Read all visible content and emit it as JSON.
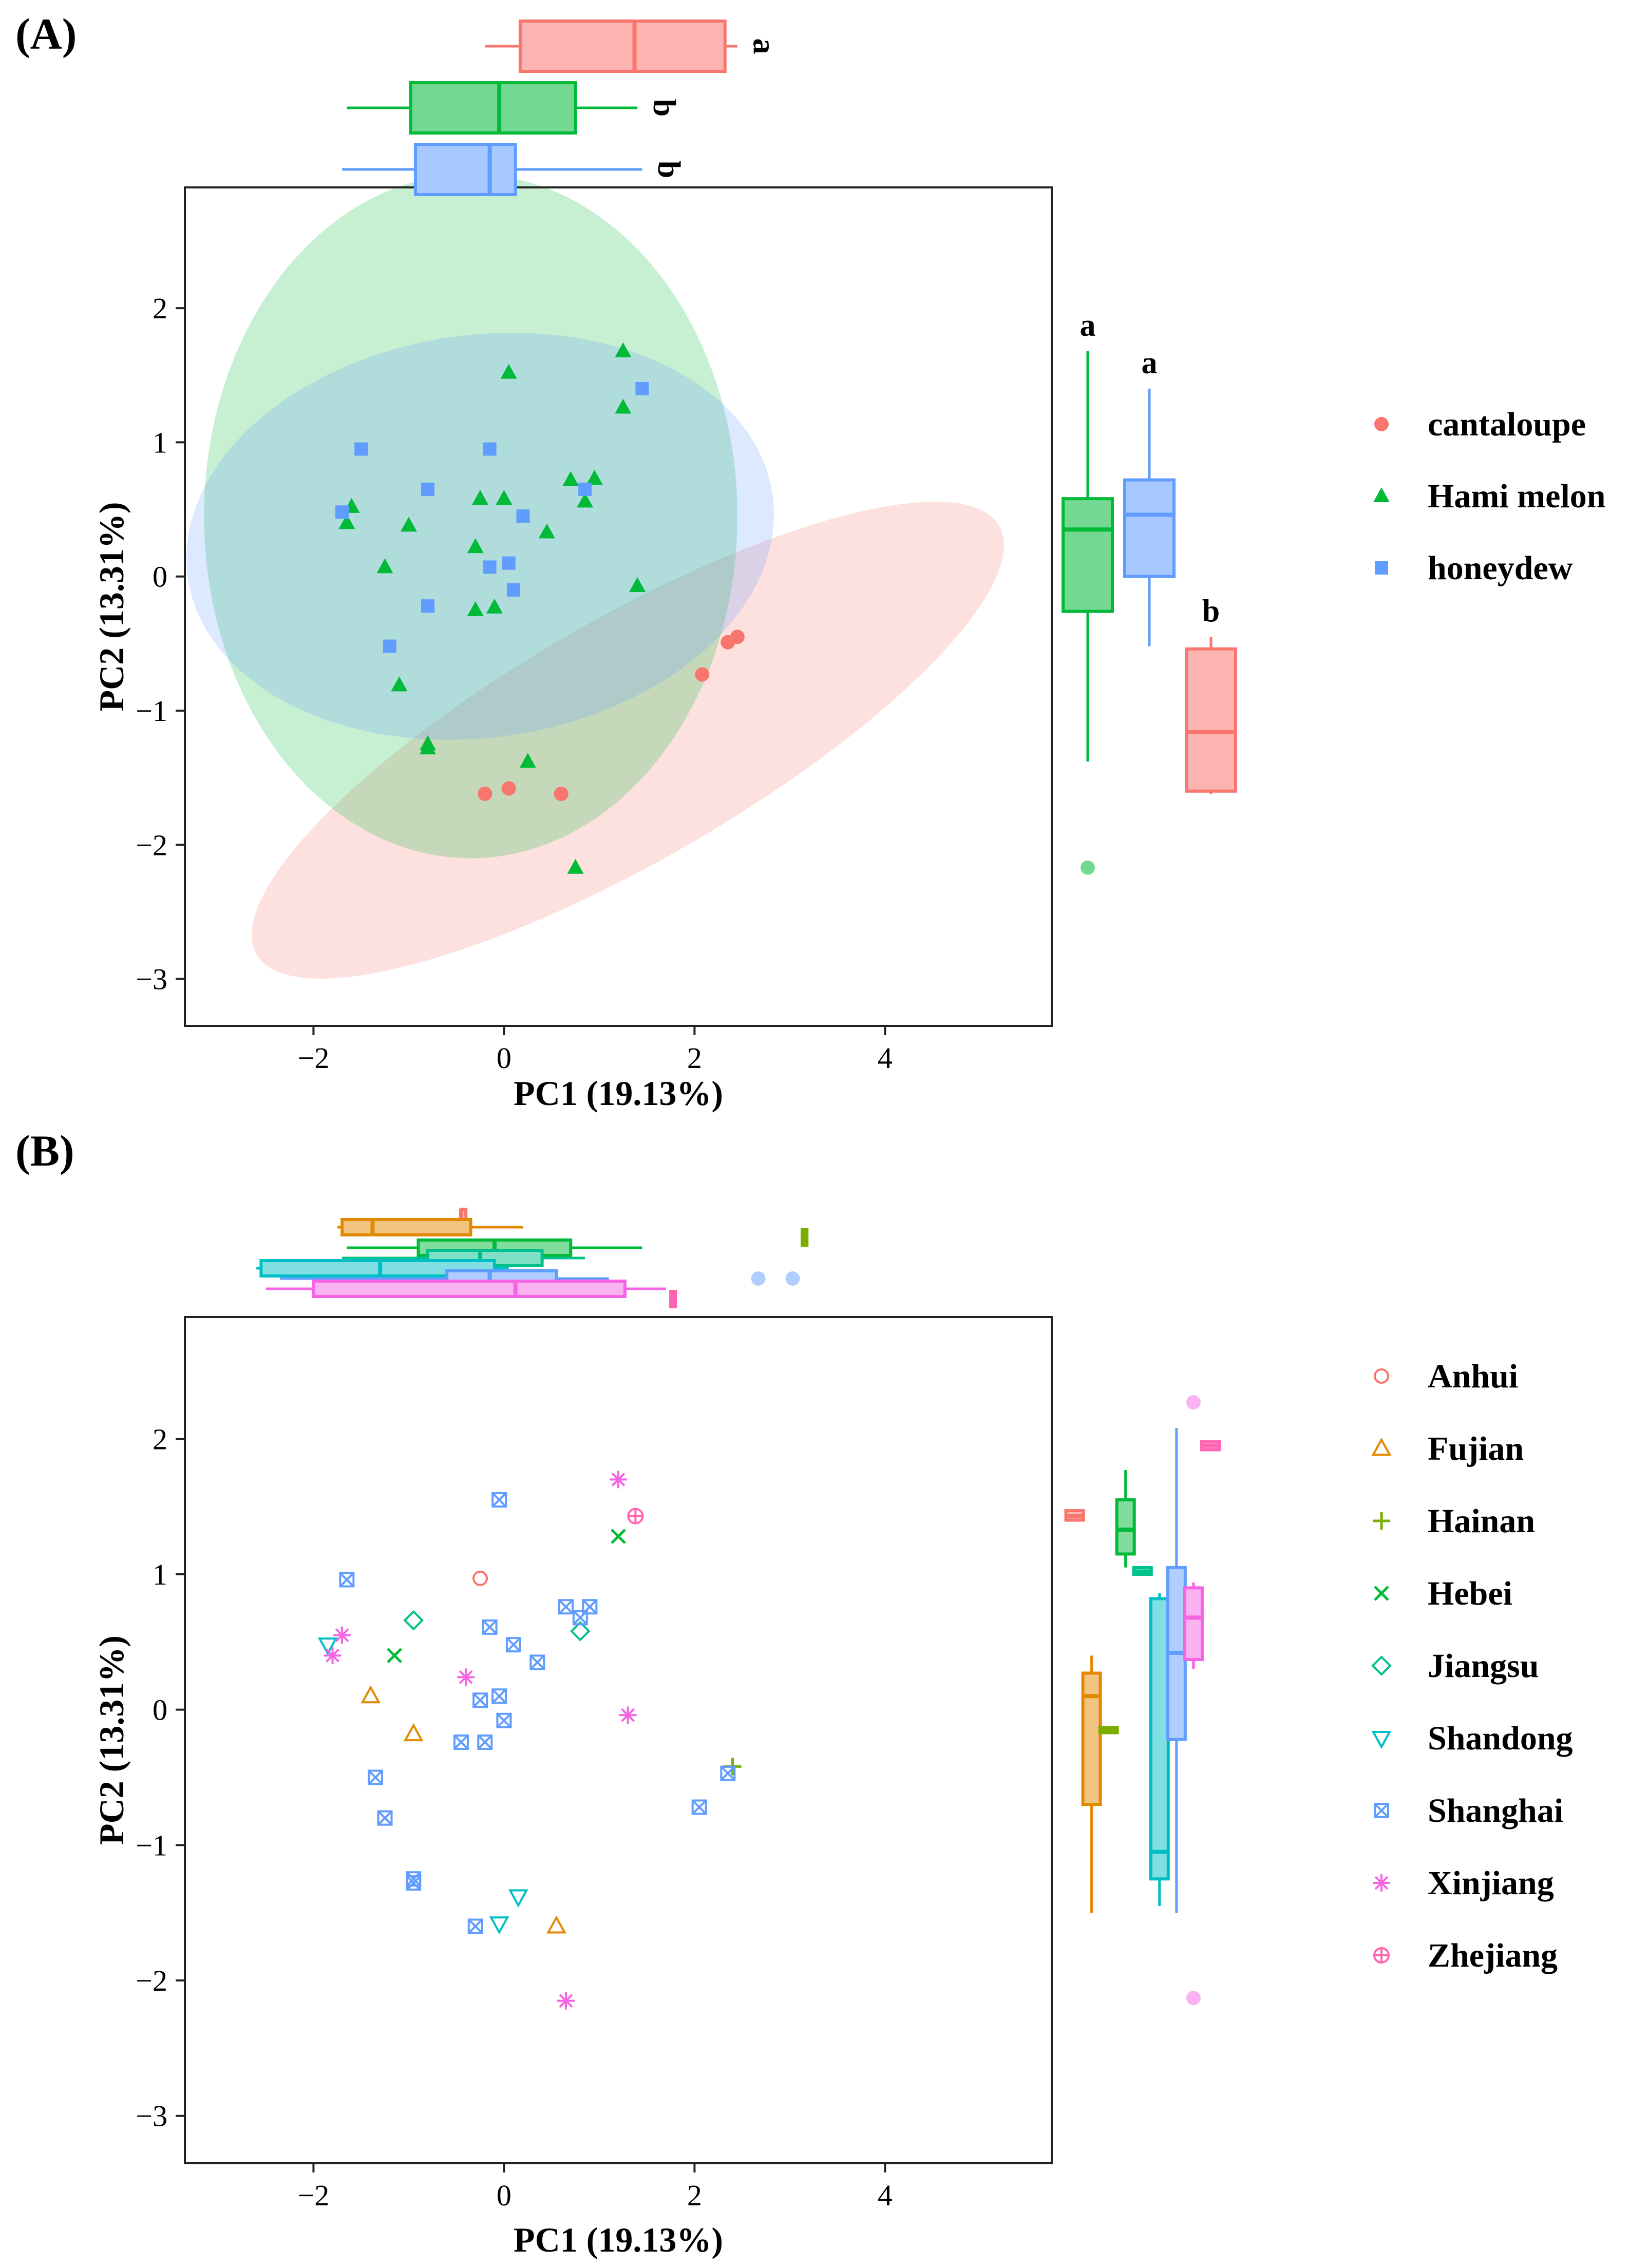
{
  "chart_data": [
    {
      "panel_label": "(A)",
      "type": "scatter",
      "xlabel": "PC1 (19.13%)",
      "ylabel": "PC2 (13.31%)",
      "xlim": [
        -3.35,
        5.75
      ],
      "ylim": [
        -3.35,
        2.9
      ],
      "x_ticks": [
        -2,
        0,
        2,
        4
      ],
      "y_ticks": [
        -3,
        -2,
        -1,
        0,
        1,
        2
      ],
      "x_tick_labels": [
        "−2",
        "0",
        "2",
        "4"
      ],
      "y_tick_labels": [
        "−3",
        "−2",
        "−1",
        "0",
        "1",
        "2"
      ],
      "grid": false,
      "legend_position": "right",
      "series": [
        {
          "name": "cantaloupe",
          "color": "#F8766D",
          "shape": "circle",
          "points": [
            [
              2.08,
              -0.73
            ],
            [
              2.35,
              -0.49
            ],
            [
              2.45,
              -0.45
            ],
            [
              0.05,
              -1.58
            ],
            [
              -0.2,
              -1.62
            ],
            [
              0.6,
              -1.62
            ]
          ],
          "ellipse": {
            "center": [
              1.3,
              -1.22
            ],
            "rx": 4.5,
            "ry": 0.9,
            "angle_deg": 30,
            "fill": "#F8766D"
          },
          "box_x": {
            "min": -0.2,
            "q1": 0.17,
            "median": 1.37,
            "q3": 2.32,
            "max": 2.45,
            "letter": "a"
          },
          "box_y": {
            "min": -1.62,
            "q1": -1.6,
            "median": -1.16,
            "q3": -0.54,
            "max": -0.45,
            "letter": "b"
          }
        },
        {
          "name": "Hami melon",
          "color": "#00BA38",
          "shape": "triangle",
          "points": [
            [
              1.25,
              1.68
            ],
            [
              0.05,
              1.52
            ],
            [
              1.25,
              1.26
            ],
            [
              -1.6,
              0.52
            ],
            [
              -1.65,
              0.4
            ],
            [
              -1.0,
              0.38
            ],
            [
              -0.3,
              0.22
            ],
            [
              0.45,
              0.33
            ],
            [
              0.7,
              0.72
            ],
            [
              0.95,
              0.73
            ],
            [
              0.85,
              0.56
            ],
            [
              0.0,
              0.58
            ],
            [
              -0.25,
              0.58
            ],
            [
              -1.25,
              0.07
            ],
            [
              1.4,
              -0.07
            ],
            [
              -0.3,
              -0.25
            ],
            [
              -0.1,
              -0.23
            ],
            [
              -1.1,
              -0.81
            ],
            [
              -0.8,
              -1.25
            ],
            [
              -0.8,
              -1.28
            ],
            [
              0.25,
              -1.38
            ],
            [
              0.75,
              -2.17
            ]
          ],
          "ellipse": {
            "center": [
              -0.35,
              0.45
            ],
            "rx": 2.8,
            "ry": 2.55,
            "angle_deg": 0,
            "fill": "#00BA38"
          },
          "box_x": {
            "min": -1.65,
            "q1": -0.98,
            "median": -0.05,
            "q3": 0.75,
            "max": 1.4,
            "letter": "b"
          },
          "box_y": {
            "min": -1.38,
            "q1": -0.26,
            "median": 0.35,
            "q3": 0.58,
            "max": 1.68,
            "outliers": [
              -2.17
            ],
            "letter": "a"
          }
        },
        {
          "name": "honeydew",
          "color": "#619CFF",
          "shape": "square",
          "points": [
            [
              1.45,
              1.4
            ],
            [
              -1.5,
              0.95
            ],
            [
              -0.15,
              0.95
            ],
            [
              -0.8,
              0.65
            ],
            [
              0.85,
              0.65
            ],
            [
              -1.7,
              0.48
            ],
            [
              0.2,
              0.45
            ],
            [
              0.05,
              0.1
            ],
            [
              -0.15,
              0.07
            ],
            [
              0.1,
              -0.1
            ],
            [
              -0.8,
              -0.22
            ],
            [
              -1.2,
              -0.52
            ]
          ],
          "ellipse": {
            "center": [
              -0.25,
              0.3
            ],
            "rx": 3.1,
            "ry": 1.5,
            "angle_deg": 8,
            "fill": "#619CFF"
          },
          "box_x": {
            "min": -1.7,
            "q1": -0.93,
            "median": -0.15,
            "q3": 0.12,
            "max": 1.45,
            "letter": "b"
          },
          "box_y": {
            "min": -0.52,
            "q1": 0.0,
            "median": 0.46,
            "q3": 0.72,
            "max": 1.4,
            "letter": "a"
          }
        }
      ]
    },
    {
      "panel_label": "(B)",
      "type": "scatter",
      "xlabel": "PC1 (19.13%)",
      "ylabel": "PC2 (13.31%)",
      "xlim": [
        -3.35,
        5.75
      ],
      "ylim": [
        -3.35,
        2.9
      ],
      "x_ticks": [
        -2,
        0,
        2,
        4
      ],
      "y_ticks": [
        -3,
        -2,
        -1,
        0,
        1,
        2
      ],
      "x_tick_labels": [
        "−2",
        "0",
        "2",
        "4"
      ],
      "y_tick_labels": [
        "−3",
        "−2",
        "−1",
        "0",
        "1",
        "2"
      ],
      "grid": false,
      "legend_position": "right",
      "series": [
        {
          "name": "Anhui",
          "color": "#F8766D",
          "shape": "open-circle",
          "points": [
            [
              -0.25,
              0.97
            ]
          ],
          "box_x": {
            "min": -0.45,
            "q1": -0.45,
            "median": -0.45,
            "q3": -0.4,
            "max": -0.4
          },
          "box_y": {
            "min": 1.4,
            "q1": 1.4,
            "median": 1.43,
            "q3": 1.47,
            "max": 1.47
          }
        },
        {
          "name": "Fujian",
          "color": "#E38900",
          "shape": "open-triangle",
          "points": [
            [
              -1.4,
              0.1
            ],
            [
              -0.95,
              -0.18
            ],
            [
              0.55,
              -1.6
            ]
          ],
          "box_x": {
            "min": -1.75,
            "q1": -1.7,
            "median": -1.38,
            "q3": -0.35,
            "max": 0.2
          },
          "box_y": {
            "min": -1.5,
            "q1": -0.7,
            "median": 0.1,
            "q3": 0.27,
            "max": 0.4
          }
        },
        {
          "name": "Hainan",
          "color": "#7CAE00",
          "shape": "plus",
          "points": [
            [
              2.4,
              -0.42
            ]
          ],
          "box_x": {
            "min": 3.13,
            "q1": 3.13,
            "median": 3.15,
            "q3": 3.18,
            "max": 3.18
          },
          "box_y": {
            "min": -0.17,
            "q1": -0.17,
            "median": -0.15,
            "q3": -0.13,
            "max": -0.13
          }
        },
        {
          "name": "Hebei",
          "color": "#00BA38",
          "shape": "cross",
          "points": [
            [
              -1.15,
              0.4
            ],
            [
              1.2,
              1.28
            ]
          ],
          "box_x": {
            "min": -1.65,
            "q1": -0.9,
            "median": -0.1,
            "q3": 0.7,
            "max": 1.45
          },
          "box_y": {
            "min": 1.05,
            "q1": 1.15,
            "median": 1.33,
            "q3": 1.55,
            "max": 1.77
          }
        },
        {
          "name": "Jiangsu",
          "color": "#00C08B",
          "shape": "open-diamond",
          "points": [
            [
              -0.95,
              0.66
            ],
            [
              0.8,
              0.58
            ]
          ],
          "box_x": {
            "min": -1.7,
            "q1": -0.8,
            "median": -0.25,
            "q3": 0.4,
            "max": 0.85
          },
          "box_y": {
            "min": 1.0,
            "q1": 1.0,
            "median": 1.02,
            "q3": 1.05,
            "max": 1.05
          }
        },
        {
          "name": "Shandong",
          "color": "#00BFC4",
          "shape": "open-triangle-down",
          "points": [
            [
              -1.85,
              0.48
            ],
            [
              0.15,
              -1.38
            ],
            [
              -0.05,
              -1.58
            ]
          ],
          "box_x": {
            "min": -2.6,
            "q1": -2.55,
            "median": -1.3,
            "q3": -0.1,
            "max": 0.05
          },
          "box_y": {
            "min": -1.45,
            "q1": -1.25,
            "median": -1.05,
            "q3": 0.82,
            "max": 0.86
          }
        },
        {
          "name": "Shanghai",
          "color": "#619CFF",
          "shape": "square-cross",
          "points": [
            [
              -0.05,
              1.55
            ],
            [
              -1.65,
              0.96
            ],
            [
              0.65,
              0.76
            ],
            [
              0.9,
              0.76
            ],
            [
              0.8,
              0.68
            ],
            [
              -0.15,
              0.61
            ],
            [
              0.1,
              0.48
            ],
            [
              0.35,
              0.35
            ],
            [
              -0.25,
              0.07
            ],
            [
              -0.05,
              0.1
            ],
            [
              0.0,
              -0.08
            ],
            [
              -0.2,
              -0.24
            ],
            [
              -0.45,
              -0.24
            ],
            [
              2.35,
              -0.47
            ],
            [
              -1.35,
              -0.5
            ],
            [
              2.05,
              -0.72
            ],
            [
              -1.25,
              -0.8
            ],
            [
              -0.95,
              -1.25
            ],
            [
              -0.95,
              -1.28
            ],
            [
              -0.3,
              -1.6
            ]
          ],
          "box_x": {
            "min": -2.35,
            "q1": -0.6,
            "median": -0.15,
            "q3": 0.55,
            "max": 1.1,
            "outliers": [
              2.67,
              3.03
            ]
          },
          "box_y": {
            "min": -1.5,
            "q1": -0.22,
            "median": 0.42,
            "q3": 1.05,
            "max": 2.08
          }
        },
        {
          "name": "Xinjiang",
          "color": "#F564E3",
          "shape": "asterisk",
          "points": [
            [
              1.2,
              1.7
            ],
            [
              -1.7,
              0.55
            ],
            [
              -1.8,
              0.4
            ],
            [
              -0.4,
              0.24
            ],
            [
              1.3,
              -0.04
            ],
            [
              0.65,
              -2.15
            ]
          ],
          "box_x": {
            "min": -2.5,
            "q1": -2.0,
            "median": 0.12,
            "q3": 1.27,
            "max": 1.7
          },
          "box_y": {
            "min": 0.3,
            "q1": 0.37,
            "median": 0.68,
            "q3": 0.9,
            "max": 0.94,
            "outliers": [
              2.27,
              -2.13
            ]
          }
        },
        {
          "name": "Zhejiang",
          "color": "#FF64B0",
          "shape": "circle-plus",
          "points": [
            [
              1.38,
              1.43
            ]
          ],
          "box_x": {
            "min": 1.75,
            "q1": 1.75,
            "median": 1.78,
            "q3": 1.8,
            "max": 1.8
          },
          "box_y": {
            "min": 1.92,
            "q1": 1.92,
            "median": 1.95,
            "q3": 1.98,
            "max": 1.98
          }
        }
      ]
    }
  ]
}
